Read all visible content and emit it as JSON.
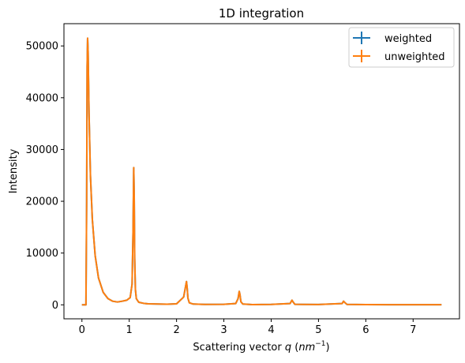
{
  "chart_data": {
    "type": "line",
    "title": "1D integration",
    "xlabel_prefix": "Scattering vector ",
    "xlabel_var": "q",
    "xlabel_unit_open": " (",
    "xlabel_unit": "nm",
    "xlabel_unit_exp": "−1",
    "xlabel_unit_close": ")",
    "ylabel": "Intensity",
    "xlim": [
      -0.38,
      7.98
    ],
    "ylim": [
      -2700,
      54300
    ],
    "xticks": [
      0,
      1,
      2,
      3,
      4,
      5,
      6,
      7
    ],
    "yticks": [
      0,
      10000,
      20000,
      30000,
      40000,
      50000
    ],
    "grid": false,
    "legend_position": "top-right",
    "series": [
      {
        "name": "weighted",
        "color": "#1f77b4",
        "x": [
          0.0,
          0.06,
          0.085,
          0.1,
          0.11,
          0.12,
          0.13,
          0.15,
          0.18,
          0.22,
          0.28,
          0.35,
          0.45,
          0.55,
          0.65,
          0.75,
          0.85,
          0.95,
          1.02,
          1.06,
          1.08,
          1.095,
          1.105,
          1.115,
          1.13,
          1.15,
          1.2,
          1.3,
          1.4,
          1.6,
          1.8,
          2.0,
          2.15,
          2.19,
          2.21,
          2.225,
          2.24,
          2.27,
          2.35,
          2.6,
          3.0,
          3.25,
          3.3,
          3.325,
          3.34,
          3.36,
          3.4,
          3.6,
          4.0,
          4.4,
          4.44,
          4.46,
          4.5,
          5.0,
          5.5,
          5.53,
          5.55,
          5.6,
          6.0,
          6.5,
          7.0,
          7.6
        ],
        "y": [
          0,
          0,
          0,
          20000,
          46000,
          51500,
          49000,
          37000,
          25000,
          16500,
          9500,
          5200,
          2400,
          1200,
          700,
          550,
          700,
          900,
          1400,
          4000,
          14000,
          26500,
          21000,
          9000,
          3000,
          1200,
          500,
          300,
          200,
          150,
          120,
          200,
          1500,
          3500,
          4500,
          3200,
          1300,
          400,
          150,
          80,
          100,
          250,
          1200,
          2600,
          2000,
          600,
          150,
          50,
          80,
          250,
          900,
          600,
          100,
          60,
          250,
          700,
          500,
          90,
          40,
          30,
          20,
          20
        ]
      },
      {
        "name": "unweighted",
        "color": "#ff7f0e",
        "x": [
          0.0,
          0.06,
          0.085,
          0.1,
          0.11,
          0.12,
          0.13,
          0.15,
          0.18,
          0.22,
          0.28,
          0.35,
          0.45,
          0.55,
          0.65,
          0.75,
          0.85,
          0.95,
          1.02,
          1.06,
          1.08,
          1.095,
          1.105,
          1.115,
          1.13,
          1.15,
          1.2,
          1.3,
          1.4,
          1.6,
          1.8,
          2.0,
          2.15,
          2.19,
          2.21,
          2.225,
          2.24,
          2.27,
          2.35,
          2.6,
          3.0,
          3.25,
          3.3,
          3.325,
          3.34,
          3.36,
          3.4,
          3.6,
          4.0,
          4.4,
          4.44,
          4.46,
          4.5,
          5.0,
          5.5,
          5.53,
          5.55,
          5.6,
          6.0,
          6.5,
          7.0,
          7.6
        ],
        "y": [
          0,
          0,
          0,
          20000,
          46000,
          51500,
          49000,
          37000,
          25000,
          16500,
          9500,
          5200,
          2400,
          1200,
          700,
          550,
          700,
          900,
          1400,
          4000,
          14000,
          26500,
          21000,
          9000,
          3000,
          1200,
          500,
          300,
          200,
          150,
          120,
          200,
          1500,
          3500,
          4500,
          3200,
          1300,
          400,
          150,
          80,
          100,
          250,
          1200,
          2600,
          2000,
          600,
          150,
          50,
          80,
          250,
          900,
          600,
          100,
          60,
          250,
          700,
          500,
          90,
          40,
          30,
          20,
          20
        ]
      }
    ]
  }
}
